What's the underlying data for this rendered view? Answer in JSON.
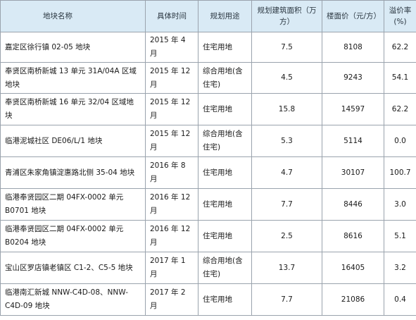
{
  "headers": {
    "name": "地块名称",
    "time": "具体时间",
    "use": "规划用途",
    "area": "规划建筑面积（万方）",
    "price": "楼面价（元/方）",
    "premium": "溢价率(%)"
  },
  "rows": [
    {
      "name": "嘉定区徐行镇 02-05 地块",
      "time": "2015 年 4 月",
      "use": "住宅用地",
      "area": "7.5",
      "price": "8108",
      "premium": "62.2"
    },
    {
      "name": "奉贤区南桥新城 13 单元 31A/04A 区域地块",
      "time": "2015 年 12 月",
      "use": "综合用地(含住宅)",
      "area": "4.5",
      "price": "9243",
      "premium": "54.1"
    },
    {
      "name": "奉贤区南桥新城 16 单元 32/04 区域地块",
      "time": "2015 年 12 月",
      "use": "住宅用地",
      "area": "15.8",
      "price": "14597",
      "premium": "62.2"
    },
    {
      "name": "临港泥城社区 DE06/L/1 地块",
      "time": "2015 年 12 月",
      "use": "综合用地(含住宅)",
      "area": "5.3",
      "price": "5114",
      "premium": "0.0"
    },
    {
      "name": "青浦区朱家角镇淀惠路北侧 35-04 地块",
      "time": "2016 年 8 月",
      "use": "住宅用地",
      "area": "4.7",
      "price": "30107",
      "premium": "100.7"
    },
    {
      "name": "临港奉贤园区二期 04FX-0002 单元 B0701 地块",
      "time": "2016 年 12 月",
      "use": "住宅用地",
      "area": "7.7",
      "price": "8446",
      "premium": "3.0"
    },
    {
      "name": "临港奉贤园区二期 04FX-0002 单元 B0204 地块",
      "time": "2016 年 12 月",
      "use": "住宅用地",
      "area": "2.5",
      "price": "8616",
      "premium": "5.1"
    },
    {
      "name": "宝山区罗店镇老镇区 C1-2、C5-5 地块",
      "time": "2017 年 1 月",
      "use": "综合用地(含住宅)",
      "area": "13.7",
      "price": "16405",
      "premium": "3.2"
    },
    {
      "name": "临港南汇新城 NNW-C4D-08、NNW-C4D-09 地块",
      "time": "2017 年 2 月",
      "use": "住宅用地",
      "area": "7.7",
      "price": "21086",
      "premium": "0.4"
    }
  ]
}
